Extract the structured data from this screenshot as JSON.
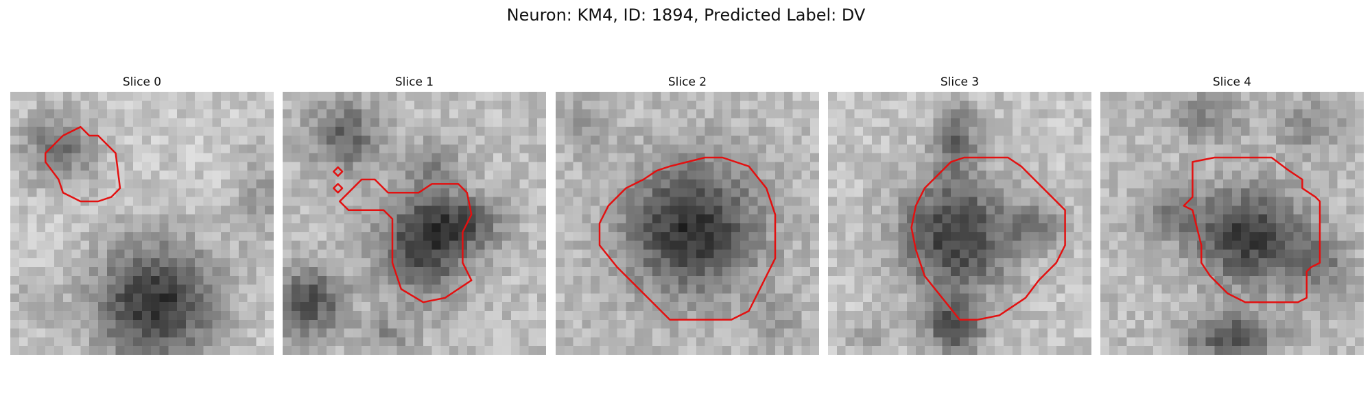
{
  "figure": {
    "title": "Neuron: KM4, ID: 1894, Predicted Label: DV",
    "panels": [
      {
        "title": "Slice 0"
      },
      {
        "title": "Slice 1"
      },
      {
        "title": "Slice 2"
      },
      {
        "title": "Slice 3"
      },
      {
        "title": "Slice 4"
      }
    ],
    "image_style": "grayscale microscopy patch, 30x30 pixel grid",
    "contour_color": "#e31010"
  }
}
